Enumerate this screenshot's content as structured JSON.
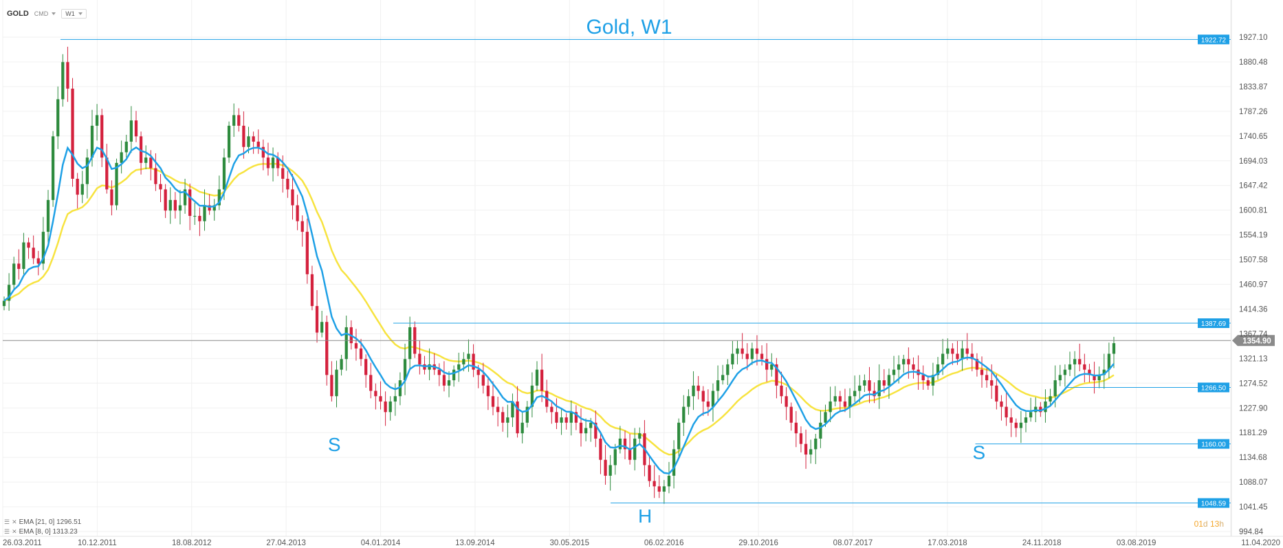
{
  "toolbar": {
    "symbol": "GOLD",
    "type": "CMD",
    "timeframe": "W1"
  },
  "legend": [
    {
      "text": "EMA [21, 0] 1296.51",
      "color": "#f7e33f"
    },
    {
      "text": "EMA [8, 0] 1313.23",
      "color": "#1ea0e6"
    }
  ],
  "countdown": {
    "days": "01",
    "d": "d",
    "hours": "13",
    "h": "h"
  },
  "chart_data": {
    "type": "candlestick",
    "title": "Gold, W1",
    "y_ticks": [
      1927.1,
      1880.48,
      1833.87,
      1787.26,
      1740.65,
      1694.03,
      1647.42,
      1600.81,
      1554.19,
      1507.58,
      1460.97,
      1414.36,
      1367.74,
      1321.13,
      1274.52,
      1227.9,
      1181.29,
      1134.68,
      1088.07,
      1041.45,
      994.84
    ],
    "y_tick_labels": [
      "1927.10",
      "1880.48",
      "1833.87",
      "1787.26",
      "1740.65",
      "1694.03",
      "1647.42",
      "1600.81",
      "1554.19",
      "1507.58",
      "1460.97",
      "1414.36",
      "1367.74",
      "1321.13",
      "1274.52",
      "1227.90",
      "1181.29",
      "1134.68",
      "1088.07",
      "1041.45",
      "994.84"
    ],
    "ylim": [
      994.84,
      1927.1
    ],
    "x_ticks": [
      "26.03.2011",
      "10.12.2011",
      "18.08.2012",
      "27.04.2013",
      "04.01.2014",
      "13.09.2014",
      "30.05.2015",
      "06.02.2016",
      "29.10.2016",
      "08.07.2017",
      "17.03.2018",
      "24.11.2018",
      "03.08.2019",
      "11.04.2020"
    ],
    "current_price": {
      "value": 1354.9,
      "label": "1354.90"
    },
    "levels": [
      {
        "value": 1922.72,
        "label": "1922.72",
        "from": 0.047
      },
      {
        "value": 1387.69,
        "label": "1387.69",
        "from": 0.318
      },
      {
        "value": 1266.5,
        "label": "1266.50",
        "from": 0.865
      },
      {
        "value": 1160.0,
        "label": "1160.00",
        "from": 0.792
      },
      {
        "value": 1048.59,
        "label": "1048.59",
        "from": 0.495
      }
    ],
    "annotations": [
      {
        "text": "S",
        "x": 0.27,
        "price": 1165
      },
      {
        "text": "H",
        "x": 0.523,
        "price": 1030
      },
      {
        "text": "S",
        "x": 0.795,
        "price": 1150
      }
    ],
    "series_close": [
      1430,
      1460,
      1500,
      1490,
      1540,
      1530,
      1510,
      1500,
      1560,
      1620,
      1740,
      1810,
      1880,
      1830,
      1660,
      1630,
      1650,
      1700,
      1760,
      1780,
      1700,
      1640,
      1610,
      1690,
      1710,
      1730,
      1770,
      1740,
      1690,
      1700,
      1680,
      1650,
      1640,
      1600,
      1620,
      1600,
      1610,
      1640,
      1590,
      1590,
      1580,
      1610,
      1600,
      1610,
      1640,
      1700,
      1760,
      1780,
      1760,
      1720,
      1740,
      1730,
      1720,
      1700,
      1680,
      1700,
      1680,
      1660,
      1640,
      1610,
      1580,
      1560,
      1480,
      1420,
      1370,
      1390,
      1290,
      1250,
      1300,
      1320,
      1380,
      1350,
      1340,
      1320,
      1290,
      1260,
      1250,
      1240,
      1220,
      1240,
      1250,
      1280,
      1320,
      1380,
      1330,
      1310,
      1300,
      1310,
      1300,
      1290,
      1270,
      1280,
      1300,
      1310,
      1320,
      1330,
      1300,
      1290,
      1270,
      1250,
      1230,
      1220,
      1200,
      1210,
      1240,
      1180,
      1200,
      1230,
      1270,
      1300,
      1260,
      1230,
      1220,
      1200,
      1210,
      1200,
      1220,
      1200,
      1180,
      1190,
      1200,
      1170,
      1130,
      1100,
      1120,
      1150,
      1170,
      1150,
      1130,
      1170,
      1180,
      1120,
      1090,
      1080,
      1070,
      1080,
      1100,
      1150,
      1200,
      1230,
      1250,
      1270,
      1260,
      1240,
      1230,
      1260,
      1280,
      1290,
      1310,
      1330,
      1340,
      1330,
      1320,
      1340,
      1330,
      1320,
      1300,
      1310,
      1270,
      1250,
      1230,
      1200,
      1180,
      1160,
      1140,
      1150,
      1170,
      1200,
      1220,
      1240,
      1250,
      1240,
      1230,
      1250,
      1260,
      1270,
      1280,
      1260,
      1250,
      1280,
      1270,
      1290,
      1300,
      1310,
      1320,
      1310,
      1300,
      1290,
      1280,
      1270,
      1290,
      1310,
      1330,
      1340,
      1330,
      1320,
      1340,
      1330,
      1320,
      1300,
      1290,
      1280,
      1270,
      1240,
      1230,
      1210,
      1200,
      1190,
      1200,
      1210,
      1220,
      1230,
      1220,
      1240,
      1250,
      1280,
      1290,
      1300,
      1310,
      1320,
      1310,
      1300,
      1290,
      1280,
      1290,
      1300,
      1330,
      1350
    ]
  }
}
